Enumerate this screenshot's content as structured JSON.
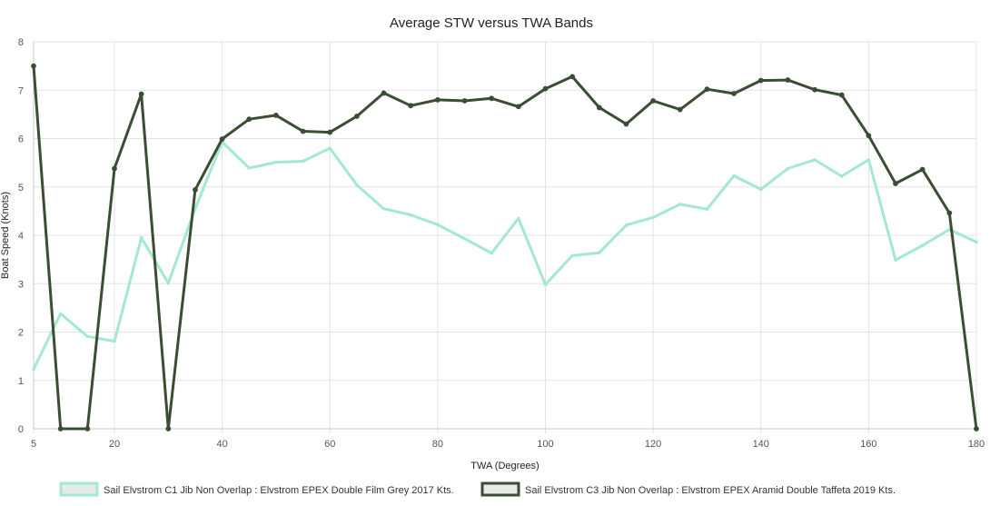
{
  "chart_data": {
    "type": "line",
    "title": "Average STW versus TWA Bands",
    "xlabel": "TWA (Degrees)",
    "ylabel": "Boat Speed (Knots)",
    "xlim": [
      5,
      180
    ],
    "ylim": [
      0,
      8
    ],
    "x_ticks": [
      5,
      20,
      40,
      60,
      80,
      100,
      120,
      140,
      160,
      180
    ],
    "y_ticks": [
      0,
      1,
      2,
      3,
      4,
      5,
      6,
      7,
      8
    ],
    "grid": true,
    "legend_position": "bottom",
    "x": [
      5,
      10,
      15,
      20,
      25,
      30,
      35,
      40,
      45,
      50,
      55,
      60,
      65,
      70,
      75,
      80,
      85,
      90,
      95,
      100,
      105,
      110,
      115,
      120,
      125,
      130,
      135,
      140,
      145,
      150,
      155,
      160,
      165,
      170,
      175,
      180
    ],
    "series": [
      {
        "name": "Sail Elvstrom C1 Jib Non Overlap : Elvstrom EPEX Double Film Grey 2017 Kts.",
        "color": "#a3e9cf",
        "show_markers": false,
        "values": [
          1.23,
          2.38,
          1.91,
          1.81,
          3.95,
          3.01,
          4.55,
          5.93,
          5.39,
          5.51,
          5.53,
          5.8,
          5.04,
          4.55,
          4.42,
          4.22,
          3.93,
          3.63,
          4.35,
          2.98,
          3.58,
          3.64,
          4.21,
          4.37,
          4.64,
          4.54,
          5.23,
          4.95,
          5.38,
          5.56,
          5.22,
          5.56,
          3.49,
          3.79,
          4.12,
          3.86
        ]
      },
      {
        "name": "Sail Elvstrom C3 Jib Non Overlap : Elvstrom EPEX Aramid Double  Taffeta 2019 Kts.",
        "color": "#3b4d34",
        "show_markers": true,
        "values": [
          7.5,
          0.0,
          0.0,
          5.38,
          6.92,
          0.0,
          4.94,
          5.99,
          6.4,
          6.48,
          6.15,
          6.13,
          6.46,
          6.94,
          6.68,
          6.8,
          6.78,
          6.83,
          6.66,
          7.03,
          7.28,
          6.64,
          6.3,
          6.78,
          6.6,
          7.02,
          6.93,
          7.2,
          7.21,
          7.01,
          6.9,
          6.06,
          5.07,
          5.36,
          4.46,
          0.0
        ]
      }
    ]
  }
}
